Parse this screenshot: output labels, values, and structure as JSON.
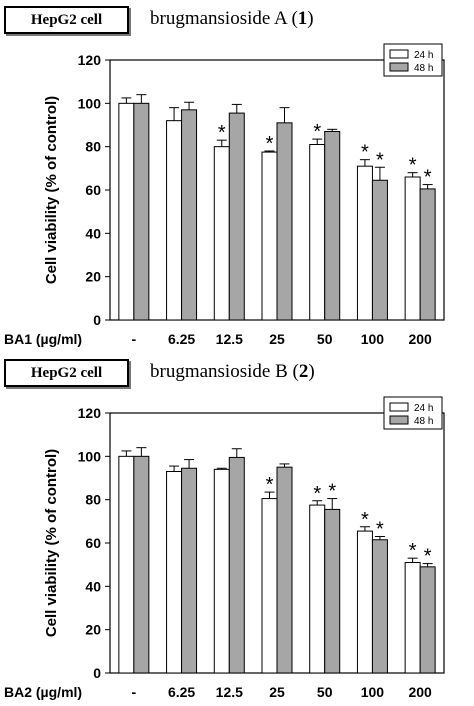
{
  "chart_data": [
    {
      "type": "bar",
      "cell_label": "HepG2 cell",
      "title_prefix": "brugmansioside A (",
      "title_number": "1",
      "title_suffix": ")",
      "xlabel": "BA1 (µg/ml)",
      "ylabel": "Cell viability (% of control)",
      "ylim": [
        0,
        120
      ],
      "yticks": [
        0,
        20,
        40,
        60,
        80,
        100,
        120
      ],
      "categories": [
        "-",
        "6.25",
        "12.5",
        "25",
        "50",
        "100",
        "200"
      ],
      "legend_position": "top-right",
      "series": [
        {
          "name": "24 h",
          "color": "#ffffff",
          "values": [
            100,
            92,
            80,
            77.5,
            81,
            71,
            66
          ],
          "errors": [
            2.5,
            6,
            3,
            0.5,
            2.5,
            3,
            2
          ],
          "significant": [
            false,
            false,
            true,
            true,
            true,
            true,
            true
          ]
        },
        {
          "name": "48 h",
          "color": "#a6a6a6",
          "values": [
            100,
            97,
            95.5,
            91,
            87,
            64.5,
            60.5
          ],
          "errors": [
            4,
            3.5,
            4,
            7,
            1,
            6,
            2
          ],
          "significant": [
            false,
            false,
            false,
            false,
            false,
            true,
            true
          ]
        }
      ],
      "significance_marker": "*"
    },
    {
      "type": "bar",
      "cell_label": "HepG2 cell",
      "title_prefix": "brugmansioside B (",
      "title_number": "2",
      "title_suffix": ")",
      "xlabel": "BA2 (µg/ml)",
      "ylabel": "Cell viability (% of control)",
      "ylim": [
        0,
        120
      ],
      "yticks": [
        0,
        20,
        40,
        60,
        80,
        100,
        120
      ],
      "categories": [
        "-",
        "6.25",
        "12.5",
        "25",
        "50",
        "100",
        "200"
      ],
      "legend_position": "top-right",
      "series": [
        {
          "name": "24 h",
          "color": "#ffffff",
          "values": [
            100,
            93,
            94,
            80.5,
            77.5,
            65.5,
            51
          ],
          "errors": [
            2.5,
            2.5,
            0.5,
            3,
            2,
            2,
            2
          ],
          "significant": [
            false,
            false,
            false,
            true,
            true,
            true,
            true
          ]
        },
        {
          "name": "48 h",
          "color": "#a6a6a6",
          "values": [
            100,
            94.5,
            99.5,
            95,
            75.5,
            61.5,
            49
          ],
          "errors": [
            4,
            4,
            4,
            1.5,
            5,
            1.5,
            1.5
          ],
          "significant": [
            false,
            false,
            false,
            false,
            true,
            true,
            true
          ]
        }
      ],
      "significance_marker": "*"
    }
  ]
}
